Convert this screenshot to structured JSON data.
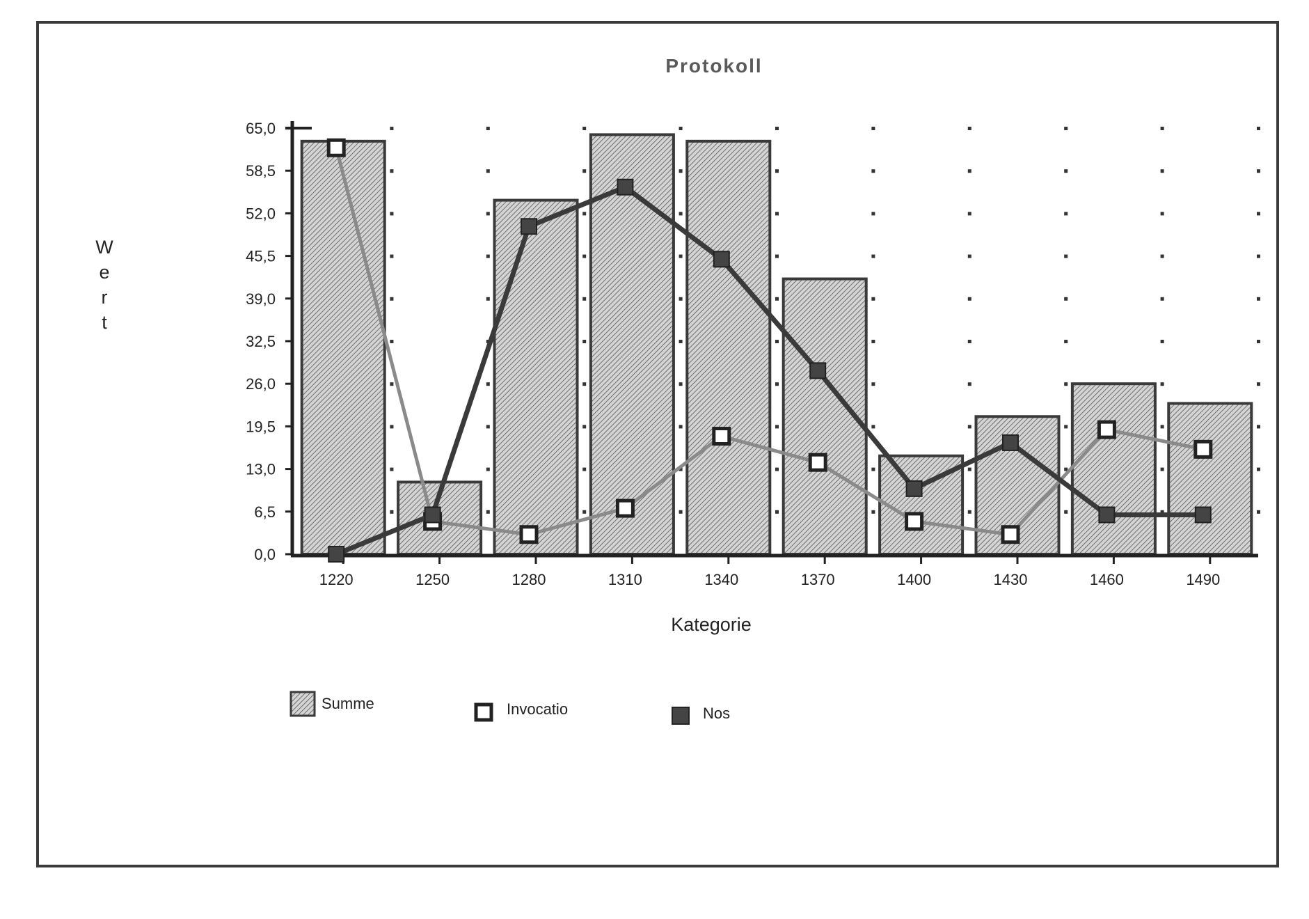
{
  "chart_data": {
    "type": "bar",
    "title": "Protokoll",
    "xlabel": "Kategorie",
    "ylabel": "Wert",
    "ylim": [
      0,
      65
    ],
    "yticks": [
      "0,0",
      "6,5",
      "13,0",
      "19,5",
      "26,0",
      "32,5",
      "39,0",
      "45,5",
      "52,0",
      "58,5",
      "65,0"
    ],
    "categories": [
      "1220",
      "1250",
      "1280",
      "1310",
      "1340",
      "1370",
      "1400",
      "1430",
      "1460",
      "1490"
    ],
    "grid": "dotted",
    "legend_position": "bottom",
    "series": [
      {
        "name": "Summe",
        "kind": "bar",
        "values": [
          63,
          11,
          54,
          64,
          63,
          42,
          15,
          21,
          26,
          23
        ],
        "color": "#bdbdbd"
      },
      {
        "name": "Invocatio",
        "kind": "line",
        "marker": "hollow-square",
        "values": [
          62,
          5,
          3,
          7,
          18,
          14,
          5,
          3,
          19,
          16
        ],
        "color": "#8a8a8a"
      },
      {
        "name": "Nos",
        "kind": "line",
        "marker": "filled-square",
        "values": [
          0,
          6,
          50,
          56,
          45,
          28,
          10,
          17,
          6,
          6
        ],
        "color": "#3a3a3a"
      }
    ]
  }
}
